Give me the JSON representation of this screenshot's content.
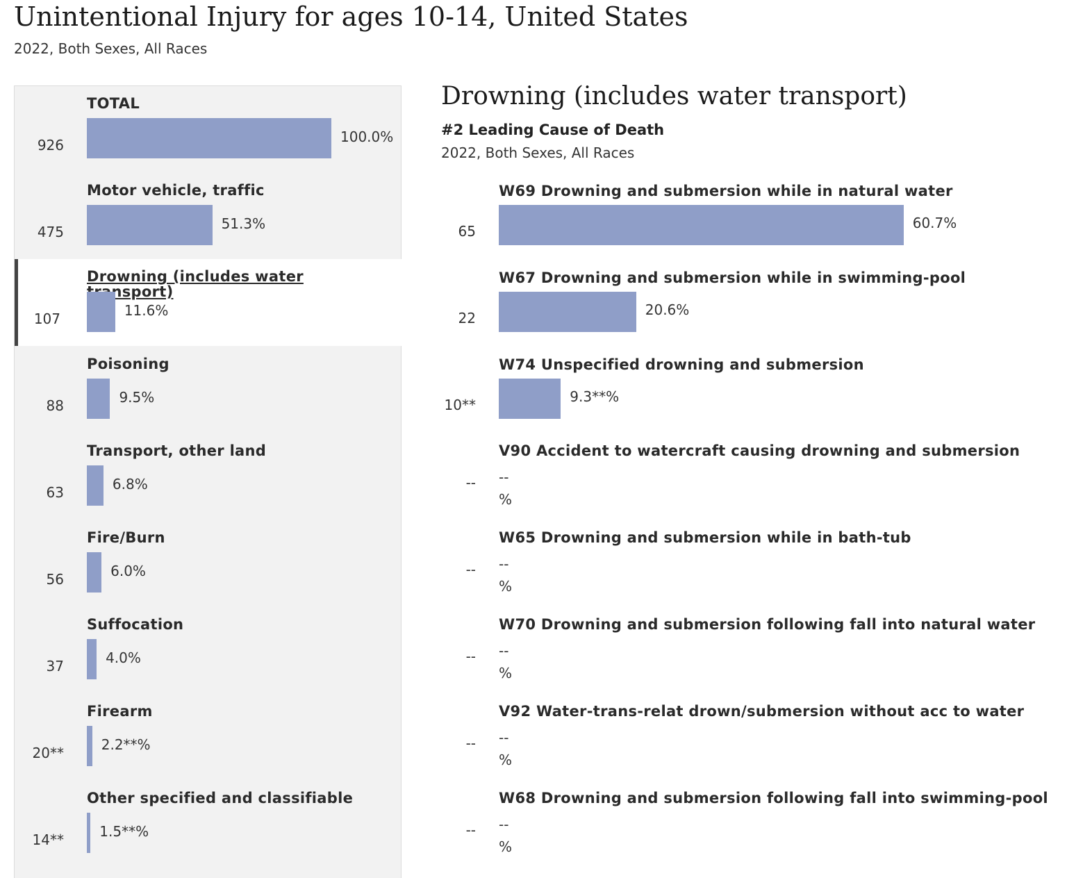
{
  "header": {
    "title": "Unintentional Injury for ages 10-14, United States",
    "subtitle": "2022, Both Sexes, All Races"
  },
  "colors": {
    "bar": "#8f9ec8",
    "panel_bg": "#f2f2f2",
    "selected_marker": "#444444"
  },
  "detail": {
    "title": "Drowning (includes water transport)",
    "rank": "#2 Leading Cause of Death",
    "subtitle": "2022, Both Sexes, All Races"
  },
  "chart_data": [
    {
      "type": "bar",
      "orientation": "horizontal",
      "title": "Unintentional Injury for ages 10-14, United States",
      "selected": "Drowning (includes water transport)",
      "categories": [
        "TOTAL",
        "Motor vehicle, traffic",
        "Drowning (includes water transport)",
        "Poisoning",
        "Transport, other land",
        "Fire/Burn",
        "Suffocation",
        "Firearm",
        "Other specified and classifiable"
      ],
      "counts": [
        "926",
        "475",
        "107",
        "88",
        "63",
        "56",
        "37",
        "20**",
        "14**"
      ],
      "percent_labels": [
        "100.0%",
        "51.3%",
        "11.6%",
        "9.5%",
        "6.8%",
        "6.0%",
        "4.0%",
        "2.2**%",
        "1.5**%"
      ],
      "values": [
        100.0,
        51.3,
        11.6,
        9.5,
        6.8,
        6.0,
        4.0,
        2.2,
        1.5
      ],
      "xlim": [
        0,
        100
      ]
    },
    {
      "type": "bar",
      "orientation": "horizontal",
      "title": "Drowning (includes water transport)",
      "categories": [
        "W69 Drowning and submersion while in natural water",
        "W67 Drowning and submersion while in swimming-pool",
        "W74 Unspecified drowning and submersion",
        "V90 Accident to watercraft causing drowning and submersion",
        "W65 Drowning and submersion while in bath-tub",
        "W70 Drowning and submersion following fall into natural water",
        "V92 Water-trans-relat drown/submersion without acc to water",
        "W68 Drowning and submersion following fall into swimming-pool"
      ],
      "counts": [
        "65",
        "22",
        "10**",
        "--",
        "--",
        "--",
        "--",
        "--"
      ],
      "percent_labels": [
        "60.7%",
        "20.6%",
        "9.3**%",
        "--\n%",
        "--\n%",
        "--\n%",
        "--\n%",
        "--\n%"
      ],
      "values": [
        60.7,
        20.6,
        9.3,
        null,
        null,
        null,
        null,
        null
      ],
      "xlim": [
        0,
        100
      ]
    }
  ]
}
